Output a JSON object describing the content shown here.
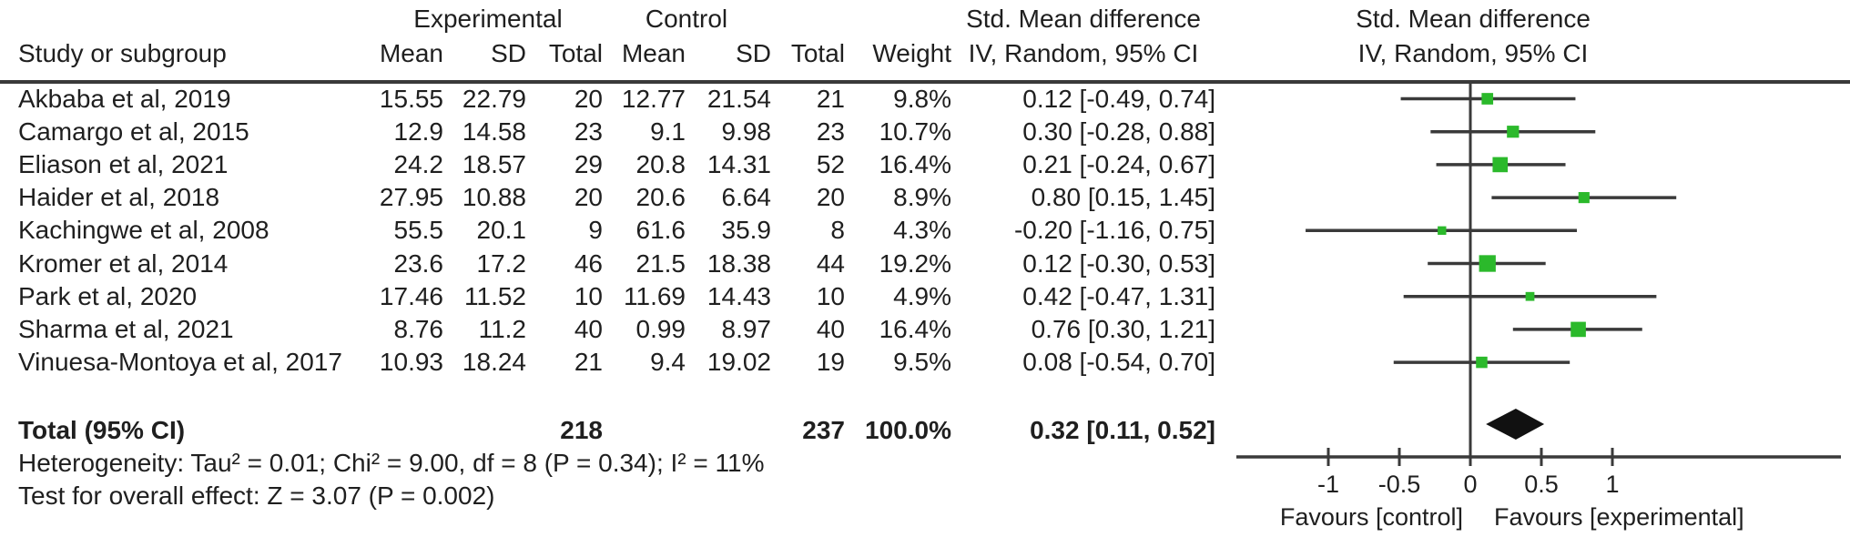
{
  "table": {
    "headers": {
      "group1": "Experimental",
      "group2": "Control",
      "study": "Study or subgroup",
      "mean": "Mean",
      "sd": "SD",
      "total": "Total",
      "weight": "Weight",
      "effect_line1": "Std. Mean difference",
      "effect_line2": "IV, Random, 95% CI"
    },
    "rows": [
      {
        "study": "Akbaba et al, 2019",
        "exp_mean": "15.55",
        "exp_sd": "22.79",
        "exp_total": "20",
        "ctrl_mean": "12.77",
        "ctrl_sd": "21.54",
        "ctrl_total": "21",
        "weight": "9.8%",
        "ci_text": "0.12 [-0.49, 0.74]"
      },
      {
        "study": "Camargo et al, 2015",
        "exp_mean": "12.9",
        "exp_sd": "14.58",
        "exp_total": "23",
        "ctrl_mean": "9.1",
        "ctrl_sd": "9.98",
        "ctrl_total": "23",
        "weight": "10.7%",
        "ci_text": "0.30 [-0.28, 0.88]"
      },
      {
        "study": "Eliason et al, 2021",
        "exp_mean": "24.2",
        "exp_sd": "18.57",
        "exp_total": "29",
        "ctrl_mean": "20.8",
        "ctrl_sd": "14.31",
        "ctrl_total": "52",
        "weight": "16.4%",
        "ci_text": "0.21 [-0.24, 0.67]"
      },
      {
        "study": "Haider et al, 2018",
        "exp_mean": "27.95",
        "exp_sd": "10.88",
        "exp_total": "20",
        "ctrl_mean": "20.6",
        "ctrl_sd": "6.64",
        "ctrl_total": "20",
        "weight": "8.9%",
        "ci_text": "0.80 [0.15, 1.45]"
      },
      {
        "study": "Kachingwe et al, 2008",
        "exp_mean": "55.5",
        "exp_sd": "20.1",
        "exp_total": "9",
        "ctrl_mean": "61.6",
        "ctrl_sd": "35.9",
        "ctrl_total": "8",
        "weight": "4.3%",
        "ci_text": "-0.20 [-1.16, 0.75]"
      },
      {
        "study": "Kromer et al, 2014",
        "exp_mean": "23.6",
        "exp_sd": "17.2",
        "exp_total": "46",
        "ctrl_mean": "21.5",
        "ctrl_sd": "18.38",
        "ctrl_total": "44",
        "weight": "19.2%",
        "ci_text": "0.12 [-0.30, 0.53]"
      },
      {
        "study": "Park et al, 2020",
        "exp_mean": "17.46",
        "exp_sd": "11.52",
        "exp_total": "10",
        "ctrl_mean": "11.69",
        "ctrl_sd": "14.43",
        "ctrl_total": "10",
        "weight": "4.9%",
        "ci_text": "0.42 [-0.47, 1.31]"
      },
      {
        "study": "Sharma et al, 2021",
        "exp_mean": "8.76",
        "exp_sd": "11.2",
        "exp_total": "40",
        "ctrl_mean": "0.99",
        "ctrl_sd": "8.97",
        "ctrl_total": "40",
        "weight": "16.4%",
        "ci_text": "0.76 [0.30, 1.21]"
      },
      {
        "study": "Vinuesa-Montoya et al, 2017",
        "exp_mean": "10.93",
        "exp_sd": "18.24",
        "exp_total": "21",
        "ctrl_mean": "9.4",
        "ctrl_sd": "19.02",
        "ctrl_total": "19",
        "weight": "9.5%",
        "ci_text": "0.08 [-0.54, 0.70]"
      }
    ],
    "total_row": {
      "label": "Total (95% CI)",
      "exp_total": "218",
      "ctrl_total": "237",
      "weight": "100.0%",
      "ci_text": "0.32 [0.11, 0.52]"
    },
    "footnotes": {
      "heterogeneity": "Heterogeneity: Tau² = 0.01; Chi² = 9.00, df = 8 (P = 0.34); I² = 11%",
      "overall_effect": "Test for overall effect: Z = 3.07 (P = 0.002)"
    }
  },
  "chart_data": {
    "type": "scatter",
    "variant": "forest_plot",
    "effect_label": "Std. Mean difference",
    "model_label": "IV, Random, 95% CI",
    "studies": [
      {
        "name": "Akbaba et al, 2019",
        "estimate": 0.12,
        "ci_low": -0.49,
        "ci_high": 0.74,
        "weight_pct": 9.8
      },
      {
        "name": "Camargo et al, 2015",
        "estimate": 0.3,
        "ci_low": -0.28,
        "ci_high": 0.88,
        "weight_pct": 10.7
      },
      {
        "name": "Eliason et al, 2021",
        "estimate": 0.21,
        "ci_low": -0.24,
        "ci_high": 0.67,
        "weight_pct": 16.4
      },
      {
        "name": "Haider et al, 2018",
        "estimate": 0.8,
        "ci_low": 0.15,
        "ci_high": 1.45,
        "weight_pct": 8.9
      },
      {
        "name": "Kachingwe et al, 2008",
        "estimate": -0.2,
        "ci_low": -1.16,
        "ci_high": 0.75,
        "weight_pct": 4.3
      },
      {
        "name": "Kromer et al, 2014",
        "estimate": 0.12,
        "ci_low": -0.3,
        "ci_high": 0.53,
        "weight_pct": 19.2
      },
      {
        "name": "Park et al, 2020",
        "estimate": 0.42,
        "ci_low": -0.47,
        "ci_high": 1.31,
        "weight_pct": 4.9
      },
      {
        "name": "Sharma et al, 2021",
        "estimate": 0.76,
        "ci_low": 0.3,
        "ci_high": 1.21,
        "weight_pct": 16.4
      },
      {
        "name": "Vinuesa-Montoya et al, 2017",
        "estimate": 0.08,
        "ci_low": -0.54,
        "ci_high": 0.7,
        "weight_pct": 9.5
      }
    ],
    "overall": {
      "label": "Total (95% CI)",
      "estimate": 0.32,
      "ci_low": 0.11,
      "ci_high": 0.52,
      "weight_pct": 100.0
    },
    "x_axis": {
      "tick_values": [
        -1,
        -0.5,
        0,
        0.5,
        1
      ],
      "tick_labels": [
        "-1",
        "-0.5",
        "0",
        "0.5",
        "1"
      ],
      "zero_line": 0
    },
    "axis_label_left": "Favours [control]",
    "axis_label_right": "Favours [experimental]",
    "colors": {
      "marker_green": "#2bb92b",
      "diamond_black": "#111111",
      "line_gray": "#3a3a3a",
      "text": "#1f1f1f"
    }
  }
}
